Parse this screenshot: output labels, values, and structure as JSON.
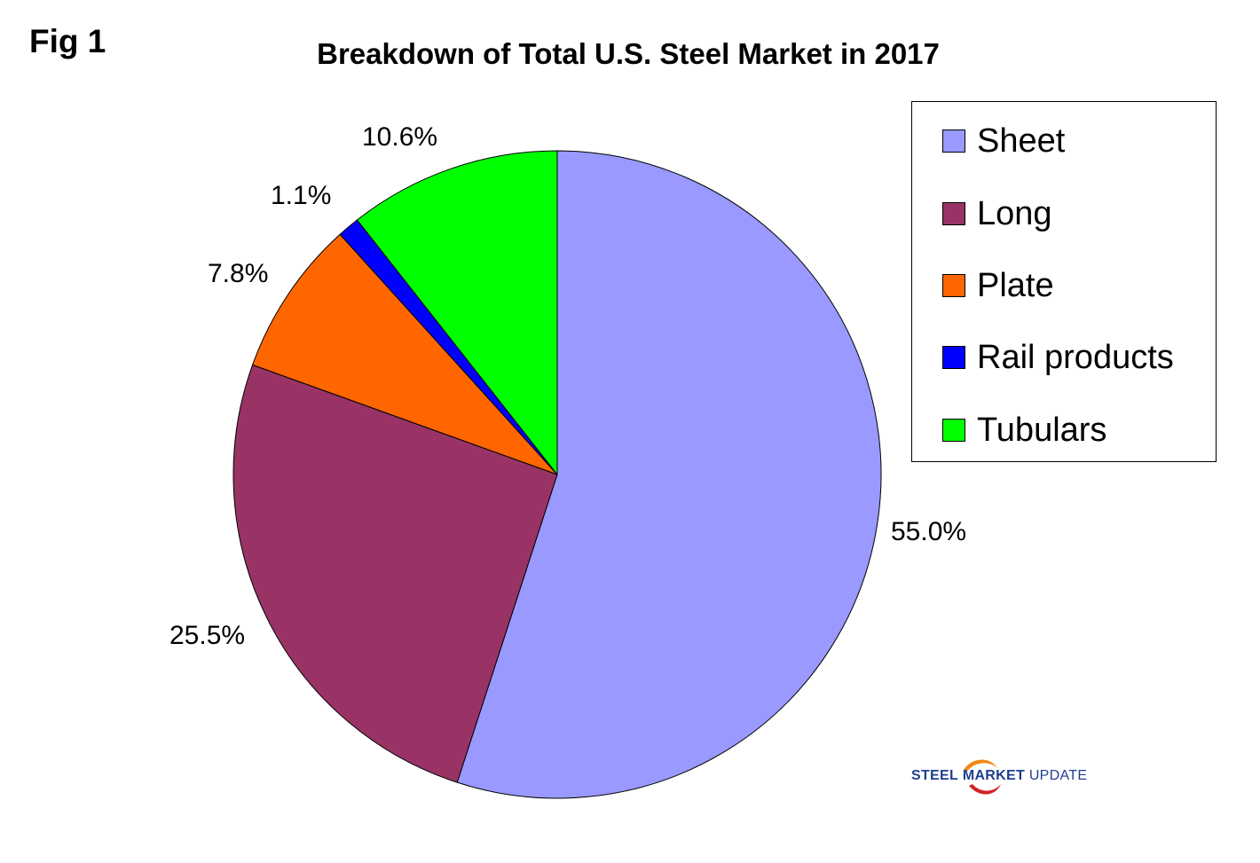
{
  "fig_label": "Fig 1",
  "chart_data": {
    "type": "pie",
    "title": "Breakdown of Total U.S. Steel Market in 2017",
    "legend_position": "right",
    "start_angle": "12 o'clock, clockwise",
    "slices": [
      {
        "label": "Sheet",
        "value": 55.0,
        "display": "55.0%",
        "color": "#9999ff"
      },
      {
        "label": "Long",
        "value": 25.5,
        "display": "25.5%",
        "color": "#993366"
      },
      {
        "label": "Plate",
        "value": 7.8,
        "display": "7.8%",
        "color": "#ff6600"
      },
      {
        "label": "Rail products",
        "value": 1.1,
        "display": "1.1%",
        "color": "#0000ff"
      },
      {
        "label": "Tubulars",
        "value": 10.6,
        "display": "10.6%",
        "color": "#00ff00"
      }
    ]
  },
  "logo": {
    "word1": "STEEL",
    "word2": "MARKET",
    "word3": "UPDATE",
    "colors": {
      "blue": "#1f3f8f",
      "orange": "#f08a1c",
      "red": "#d2232a"
    }
  }
}
